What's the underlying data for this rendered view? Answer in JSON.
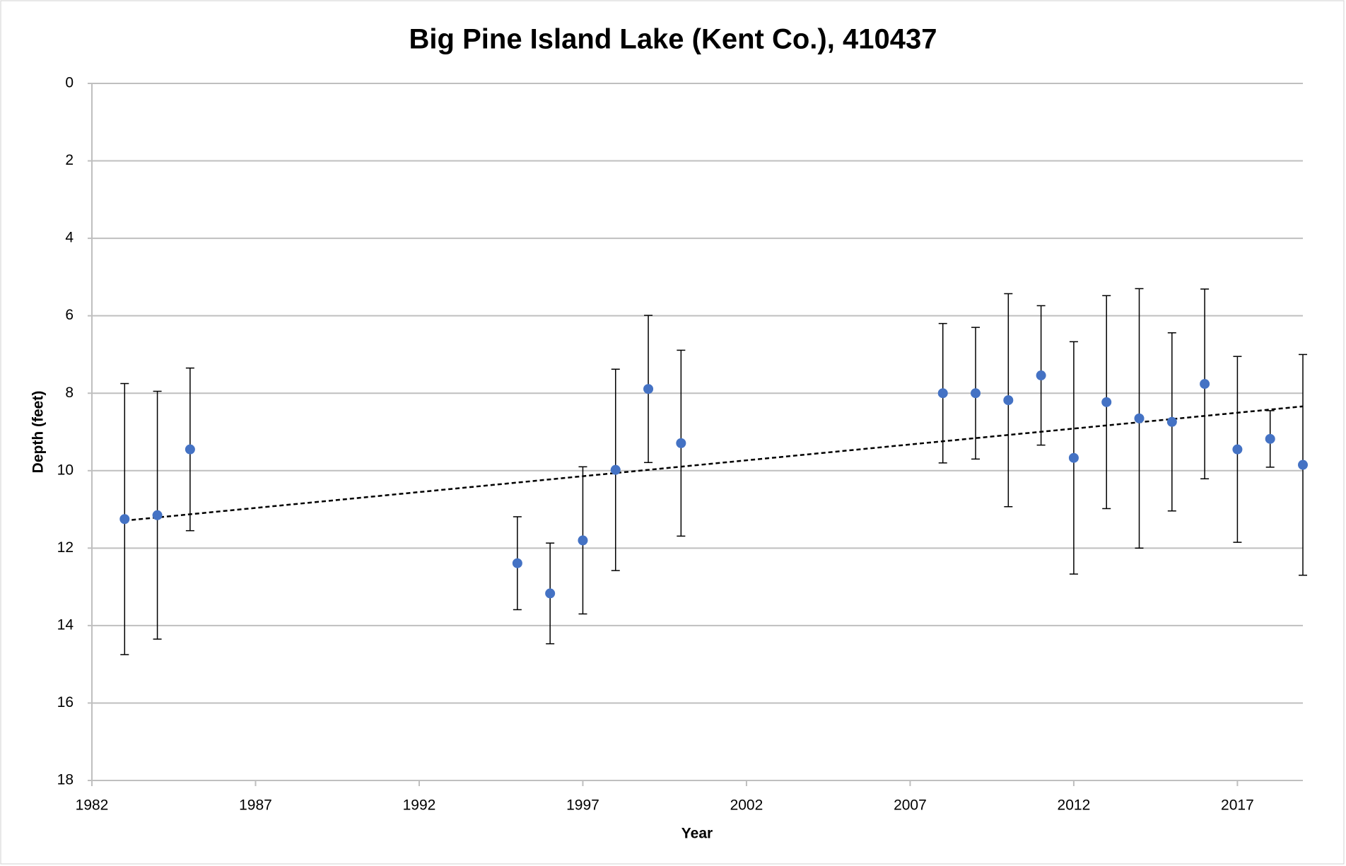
{
  "chart_data": {
    "type": "scatter",
    "title": "Big Pine Island Lake (Kent Co.), 410437",
    "x_label": "Year",
    "y_label": "Depth (feet)",
    "x": [
      1983,
      1984,
      1985,
      1995,
      1996,
      1997,
      1998,
      1999,
      2000,
      2008,
      2009,
      2010,
      2011,
      2012,
      2013,
      2014,
      2015,
      2016,
      2017,
      2018,
      2019
    ],
    "values": [
      11.25,
      11.15,
      9.45,
      12.39,
      13.17,
      11.8,
      9.98,
      7.89,
      9.29,
      8.0,
      8.0,
      8.18,
      7.54,
      9.67,
      8.23,
      8.65,
      8.74,
      7.76,
      9.45,
      9.18,
      9.85
    ],
    "errors": [
      3.5,
      3.2,
      2.1,
      1.2,
      1.3,
      1.9,
      2.6,
      1.9,
      2.4,
      1.8,
      1.7,
      2.75,
      1.8,
      3.0,
      2.75,
      3.35,
      2.3,
      2.45,
      2.4,
      0.73,
      2.85
    ],
    "color": "#4472c4",
    "trendline": {
      "x": [
        1983,
        2019
      ],
      "values": [
        11.29,
        8.34
      ]
    },
    "xlim": [
      1982,
      2019
    ],
    "xticks": [
      1982,
      1987,
      1992,
      1997,
      2002,
      2007,
      2012,
      2017
    ],
    "ylim": [
      0,
      18
    ],
    "yticks": [
      0,
      2,
      4,
      6,
      8,
      10,
      12,
      14,
      16,
      18
    ],
    "y_inverted": true,
    "grid": true
  }
}
